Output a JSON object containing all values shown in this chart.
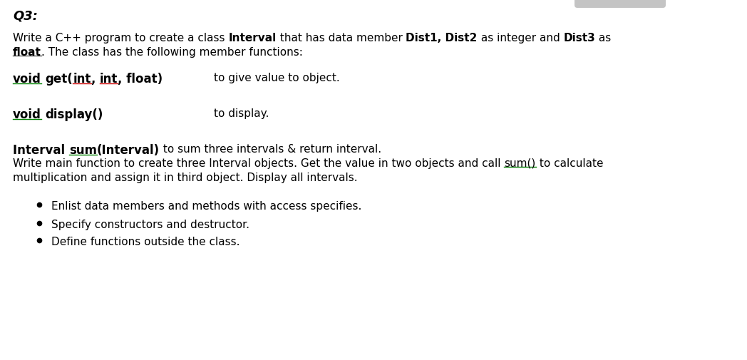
{
  "background_color": "#ffffff",
  "fig_width": 10.48,
  "fig_height": 5.06,
  "dpi": 100,
  "title": "Q3:",
  "bullet1": "Enlist data members and methods with access specifies.",
  "bullet2": "Specify constructors and destructor.",
  "bullet3": "Define functions outside the class."
}
